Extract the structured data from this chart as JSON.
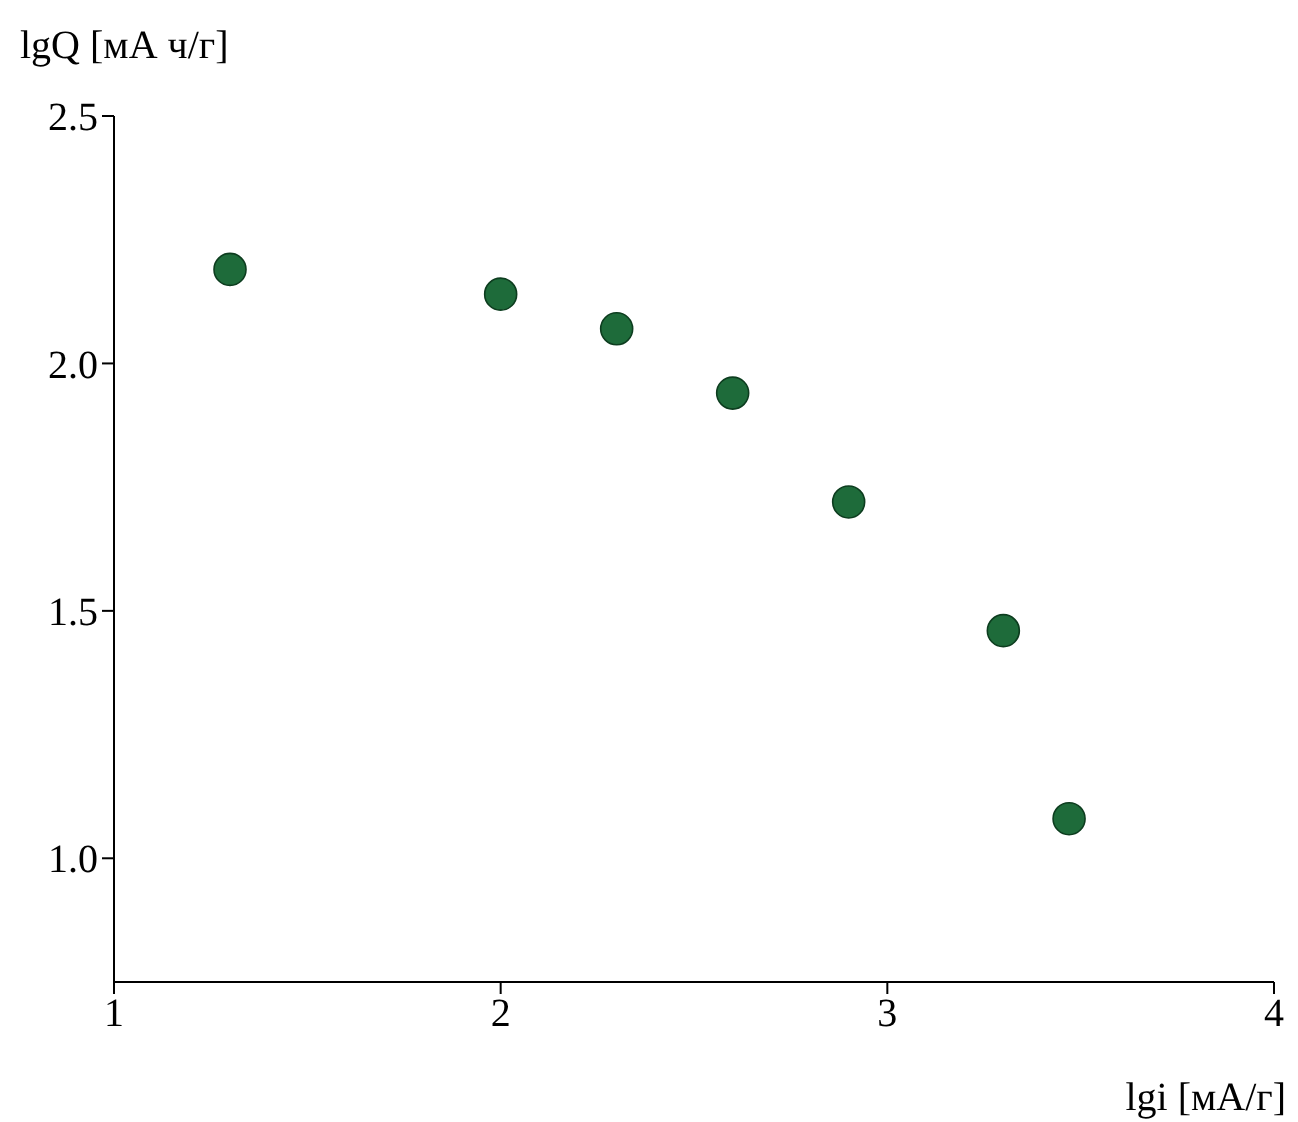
{
  "chart_data": {
    "type": "scatter",
    "xlabel": "lgi [мА/г]",
    "ylabel": "lgQ [мА ч/г]",
    "x": [
      1.3,
      2.0,
      2.3,
      2.6,
      2.9,
      3.3,
      3.47
    ],
    "series": [
      {
        "color": "#1e6b3a",
        "values": [
          2.19,
          2.14,
          2.07,
          1.94,
          1.72,
          1.46,
          1.08
        ]
      }
    ],
    "xlim": [
      1,
      4
    ],
    "xticks": [
      1,
      2,
      3,
      4
    ],
    "ylim": [
      0.75,
      2.5
    ],
    "yticks": [
      {
        "value": 1.0,
        "label": "1.0"
      },
      {
        "value": 1.5,
        "label": "1.5"
      },
      {
        "value": 2.0,
        "label": "2.0"
      },
      {
        "value": 2.5,
        "label": "2.5"
      }
    ],
    "grid": false,
    "marker": "circle"
  }
}
